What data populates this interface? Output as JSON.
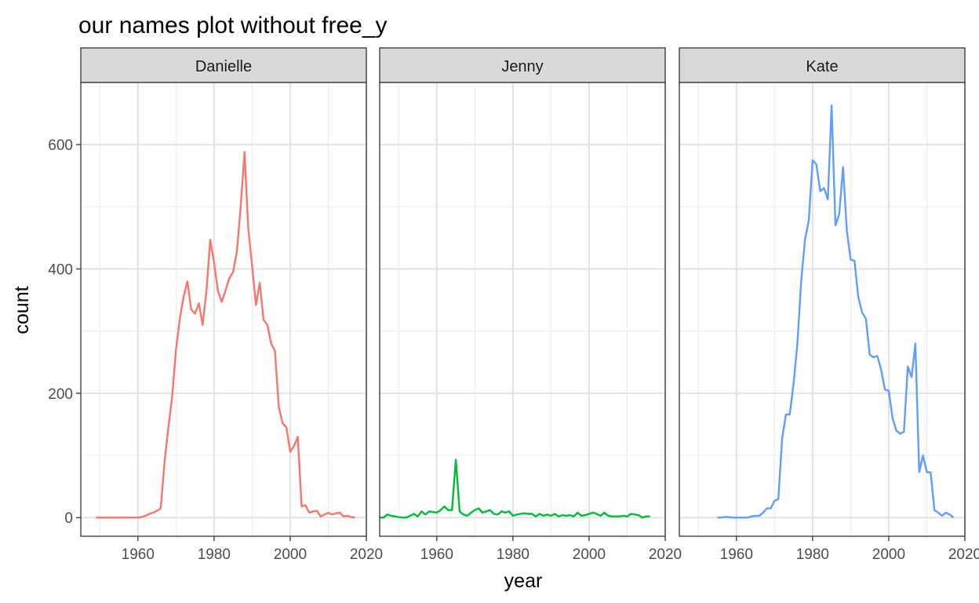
{
  "chart_data": {
    "type": "line",
    "title": "our names plot without free_y",
    "xlabel": "year",
    "ylabel": "count",
    "xlim": [
      1945,
      2020
    ],
    "ylim": [
      -30,
      700
    ],
    "x_ticks": [
      1960,
      1980,
      2000,
      2020
    ],
    "y_ticks": [
      0,
      200,
      400,
      600
    ],
    "grid": true,
    "legend": "none",
    "facets": [
      {
        "name": "Danielle",
        "color": "#F8766D",
        "x": [
          1949,
          1950,
          1951,
          1952,
          1953,
          1954,
          1955,
          1956,
          1957,
          1958,
          1959,
          1960,
          1961,
          1962,
          1963,
          1964,
          1965,
          1966,
          1967,
          1968,
          1969,
          1970,
          1971,
          1972,
          1973,
          1974,
          1975,
          1976,
          1977,
          1978,
          1979,
          1980,
          1981,
          1982,
          1983,
          1984,
          1985,
          1986,
          1987,
          1988,
          1989,
          1990,
          1991,
          1992,
          1993,
          1994,
          1995,
          1996,
          1997,
          1998,
          1999,
          2000,
          2001,
          2002,
          2003,
          2004,
          2005,
          2006,
          2007,
          2008,
          2009,
          2010,
          2011,
          2012,
          2013,
          2014,
          2015,
          2016,
          2017
        ],
        "y": [
          0,
          0,
          0,
          0,
          0,
          0,
          0,
          0,
          0,
          0,
          0,
          0,
          1,
          3,
          6,
          8,
          11,
          15,
          90,
          145,
          195,
          270,
          320,
          355,
          380,
          335,
          328,
          345,
          310,
          365,
          447,
          410,
          365,
          347,
          365,
          385,
          395,
          428,
          500,
          588,
          465,
          405,
          342,
          378,
          318,
          310,
          280,
          268,
          178,
          152,
          145,
          106,
          115,
          130,
          18,
          20,
          8,
          10,
          11,
          2,
          5,
          8,
          5,
          7,
          8,
          2,
          3,
          1,
          0
        ]
      },
      {
        "name": "Jenny",
        "color": "#00BA38",
        "x": [
          1945,
          1946,
          1947,
          1948,
          1949,
          1950,
          1951,
          1952,
          1953,
          1954,
          1955,
          1956,
          1957,
          1958,
          1959,
          1960,
          1961,
          1962,
          1963,
          1964,
          1965,
          1966,
          1967,
          1968,
          1969,
          1970,
          1971,
          1972,
          1973,
          1974,
          1975,
          1976,
          1977,
          1978,
          1979,
          1980,
          1981,
          1982,
          1983,
          1984,
          1985,
          1986,
          1987,
          1988,
          1989,
          1990,
          1991,
          1992,
          1993,
          1994,
          1995,
          1996,
          1997,
          1998,
          1999,
          2000,
          2001,
          2002,
          2003,
          2004,
          2005,
          2006,
          2007,
          2008,
          2009,
          2010,
          2011,
          2012,
          2013,
          2014,
          2015,
          2016
        ],
        "y": [
          0,
          0,
          5,
          3,
          2,
          1,
          0,
          0,
          3,
          6,
          2,
          10,
          5,
          10,
          9,
          8,
          12,
          18,
          12,
          12,
          93,
          10,
          5,
          3,
          8,
          12,
          15,
          8,
          10,
          12,
          6,
          5,
          10,
          8,
          10,
          3,
          5,
          6,
          7,
          6,
          6,
          2,
          6,
          3,
          5,
          3,
          6,
          2,
          4,
          3,
          4,
          2,
          8,
          3,
          4,
          6,
          8,
          6,
          3,
          8,
          3,
          2,
          2,
          2,
          3,
          2,
          6,
          5,
          4,
          0,
          2,
          2
        ]
      },
      {
        "name": "Kate",
        "color": "#619CFF",
        "x": [
          1955,
          1956,
          1957,
          1958,
          1959,
          1960,
          1961,
          1962,
          1963,
          1964,
          1965,
          1966,
          1967,
          1968,
          1969,
          1970,
          1971,
          1972,
          1973,
          1974,
          1975,
          1976,
          1977,
          1978,
          1979,
          1980,
          1981,
          1982,
          1983,
          1984,
          1985,
          1986,
          1987,
          1988,
          1989,
          1990,
          1991,
          1992,
          1993,
          1994,
          1995,
          1996,
          1997,
          1998,
          1999,
          2000,
          2001,
          2002,
          2003,
          2004,
          2005,
          2006,
          2007,
          2008,
          2009,
          2010,
          2011,
          2012,
          2013,
          2014,
          2015,
          2016,
          2017
        ],
        "y": [
          0,
          0,
          1,
          1,
          0,
          0,
          0,
          0,
          0,
          2,
          3,
          3,
          8,
          15,
          15,
          27,
          30,
          127,
          166,
          166,
          215,
          280,
          380,
          447,
          478,
          575,
          568,
          525,
          530,
          512,
          663,
          470,
          488,
          564,
          462,
          415,
          413,
          355,
          330,
          320,
          262,
          258,
          260,
          238,
          206,
          204,
          160,
          140,
          135,
          138,
          243,
          226,
          280,
          73,
          100,
          73,
          73,
          12,
          8,
          3,
          8,
          5,
          0
        ]
      }
    ]
  }
}
